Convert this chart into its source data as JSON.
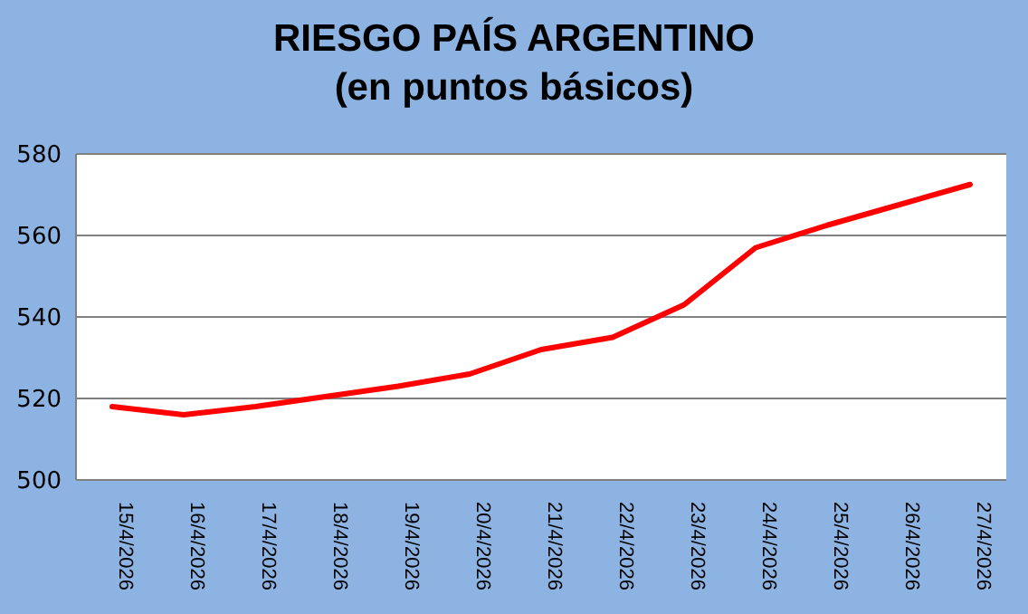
{
  "chart_data": {
    "type": "line",
    "title": "RIESGO PAÍS ARGENTINO",
    "subtitle": "(en puntos básicos)",
    "categories": [
      "15/4/2026",
      "16/4/2026",
      "17/4/2026",
      "18/4/2026",
      "19/4/2026",
      "20/4/2026",
      "21/4/2026",
      "22/4/2026",
      "23/4/2026",
      "24/4/2026",
      "25/4/2026",
      "26/4/2026",
      "27/4/2026"
    ],
    "series": [
      {
        "color": "#ff0000",
        "values": [
          518,
          516,
          518,
          520.5,
          523,
          526,
          532,
          535,
          543,
          557,
          562.5,
          567.5,
          572.5
        ]
      }
    ],
    "ylim": [
      500,
      580
    ],
    "yticks": [
      500,
      520,
      540,
      560,
      580
    ],
    "grid": "y",
    "legend": false,
    "marker": "none",
    "line_style": "solid"
  }
}
